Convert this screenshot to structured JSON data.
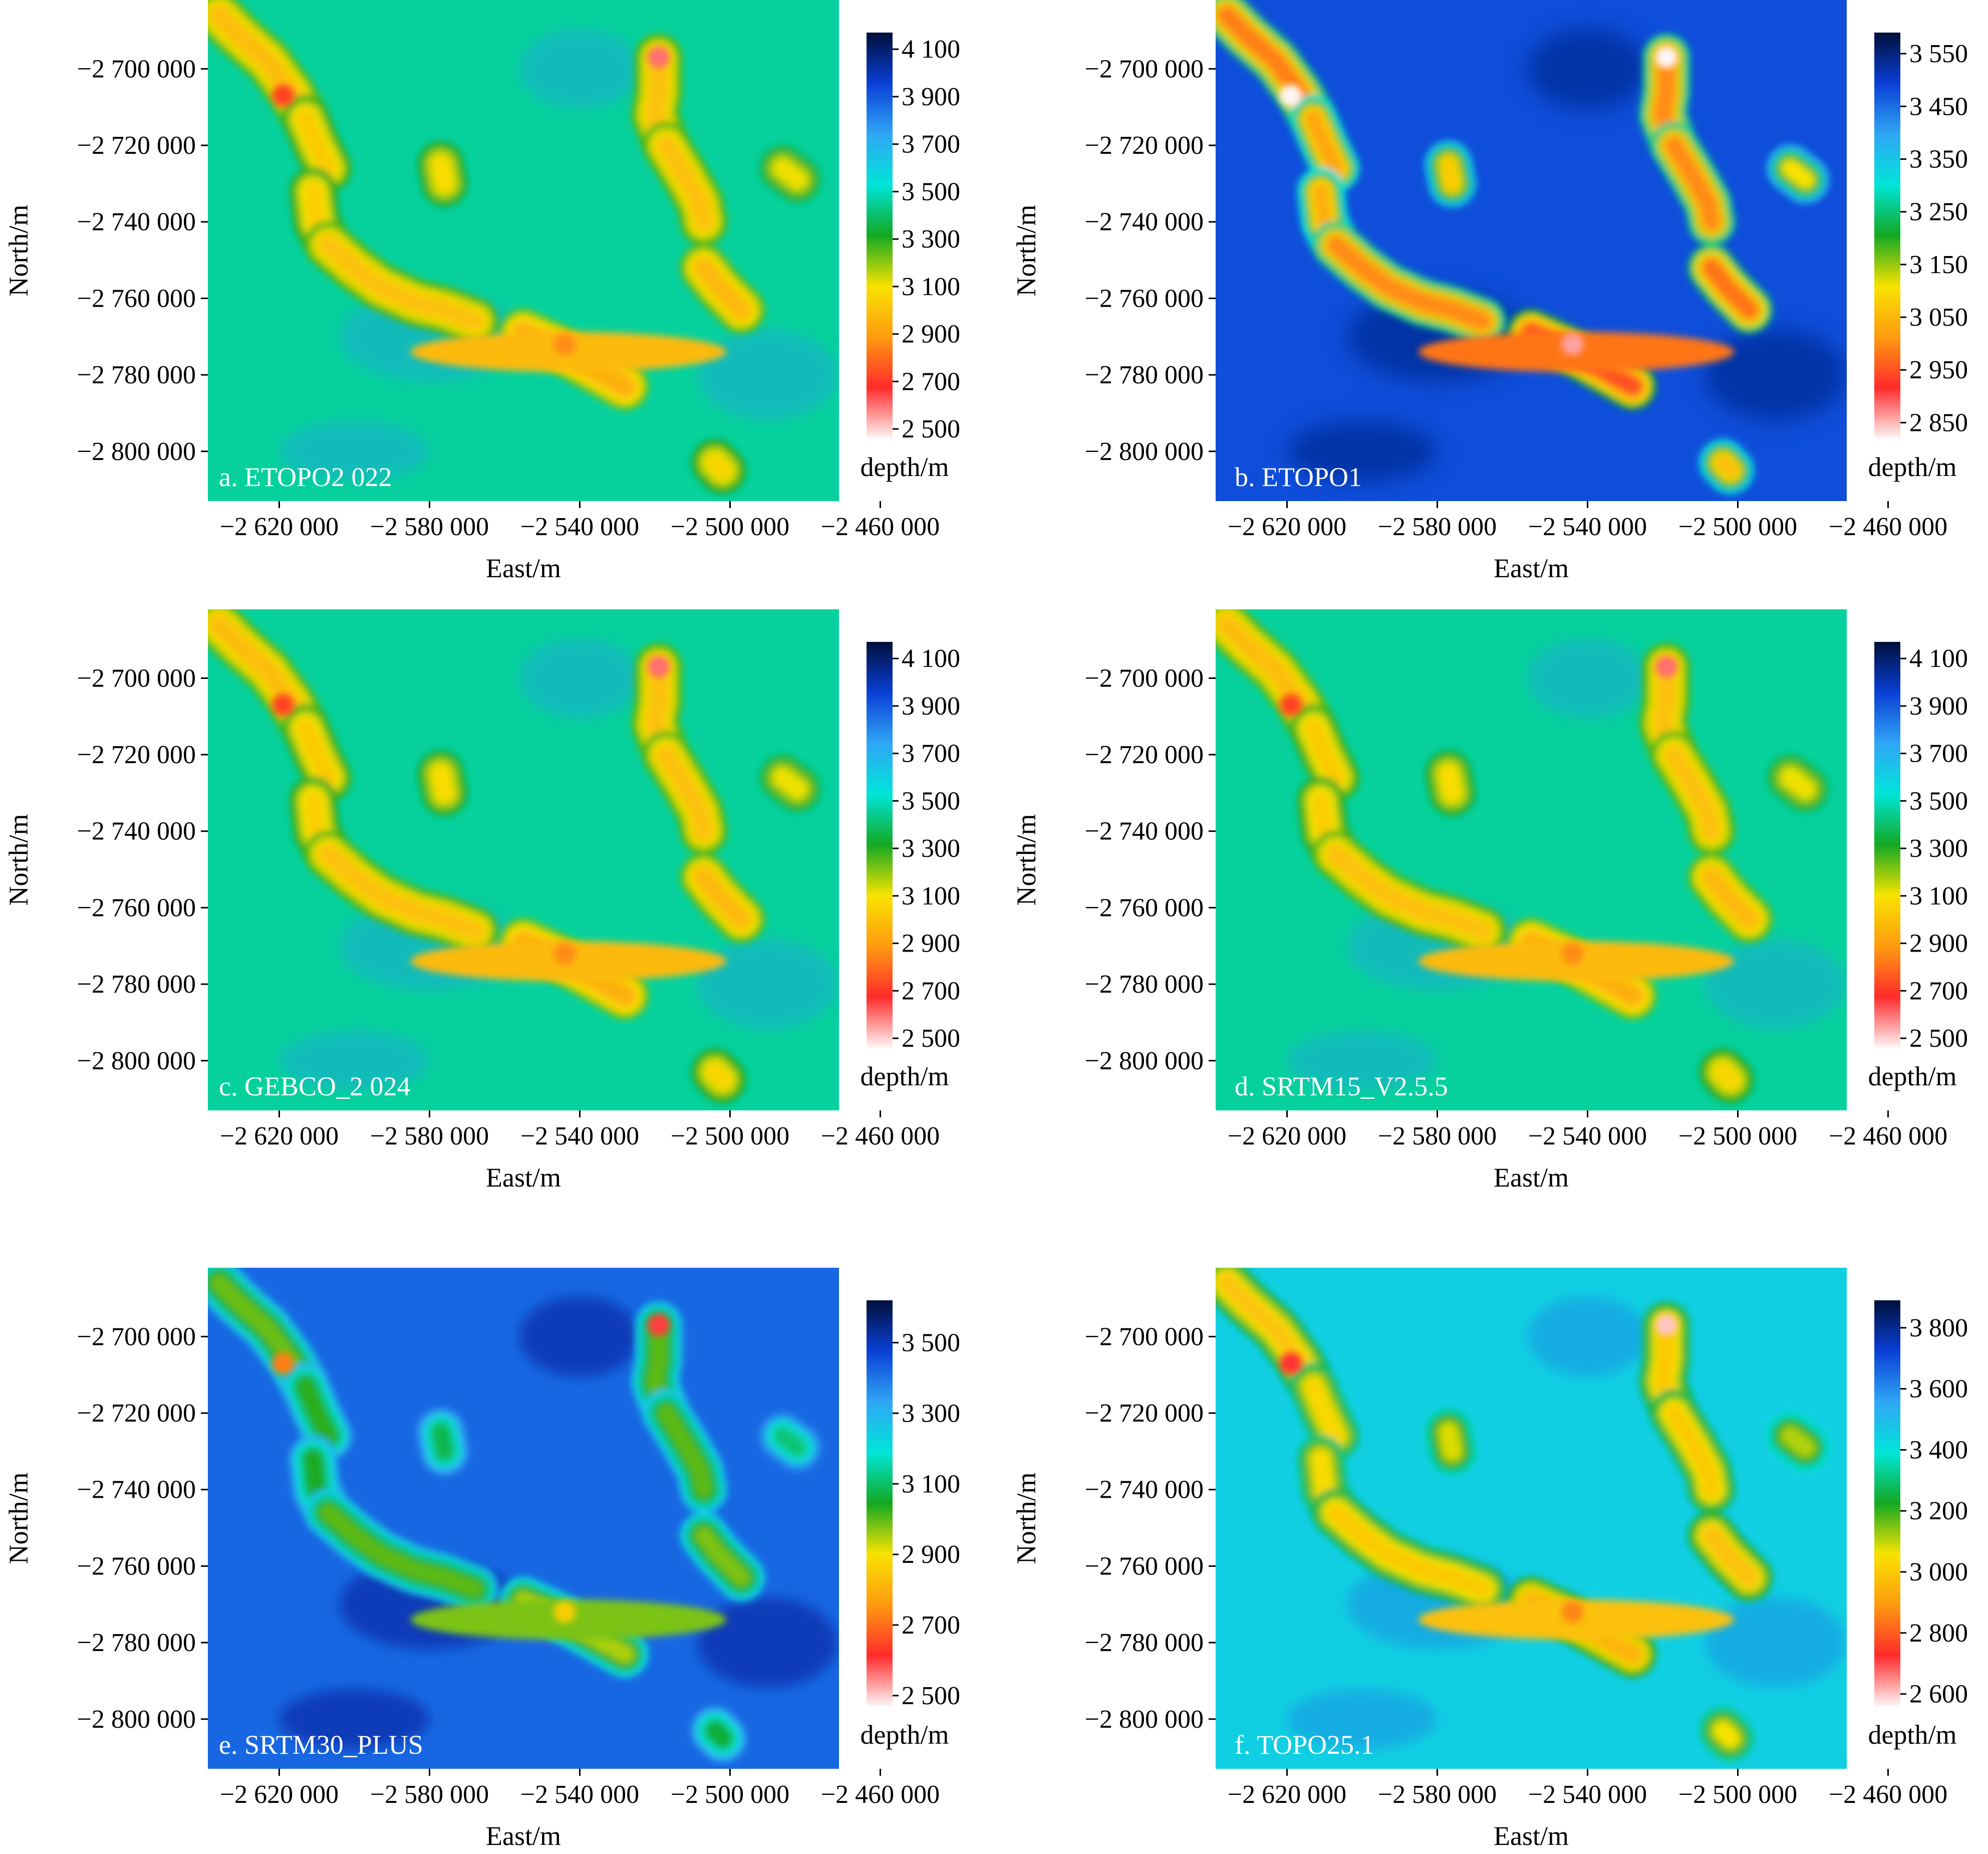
{
  "chart_data": [
    {
      "type": "heatmap",
      "panel_label": "a. ETOPO2 022",
      "xlabel": "East/m",
      "ylabel": "North/m",
      "xticks": [
        "−2 620 000",
        "−2 580 000",
        "−2 540 000",
        "−2 500 000",
        "−2 460 000"
      ],
      "xtick_values": [
        -2620000,
        -2580000,
        -2540000,
        -2500000,
        -2460000
      ],
      "yticks": [
        "−2 700 000",
        "−2 720 000",
        "−2 740 000",
        "−2 760 000",
        "−2 780 000",
        "−2 800 000"
      ],
      "ytick_values": [
        -2700000,
        -2720000,
        -2740000,
        -2760000,
        -2780000,
        -2800000
      ],
      "xlim": [
        -2639000,
        -2471000
      ],
      "ylim": [
        -2813000,
        -2682000
      ],
      "colorbar": {
        "title": "depth/m",
        "ticks": [
          "4 100",
          "3 900",
          "3 700",
          "3 500",
          "3 300",
          "3 100",
          "2 900",
          "2 700",
          "2 500"
        ],
        "tick_values": [
          4100,
          3900,
          3700,
          3500,
          3300,
          3100,
          2900,
          2700,
          2500
        ],
        "range": [
          2460,
          4170
        ],
        "colors": [
          "#fff6f6",
          "#ff2a2a",
          "#ff9b10",
          "#f8e300",
          "#13a822",
          "#00e5d8",
          "#2fa6f5",
          "#0a3fd6",
          "#000f3a"
        ]
      },
      "background_depth": 3460,
      "style": "etopo2"
    },
    {
      "type": "heatmap",
      "panel_label": "b. ETOPO1",
      "xlabel": "East/m",
      "ylabel": "North/m",
      "xticks": [
        "−2 620 000",
        "−2 580 000",
        "−2 540 000",
        "−2 500 000",
        "−2 460 000"
      ],
      "xtick_values": [
        -2620000,
        -2580000,
        -2540000,
        -2500000,
        -2460000
      ],
      "yticks": [
        "−2 700 000",
        "−2 720 000",
        "−2 740 000",
        "−2 760 000",
        "−2 780 000",
        "−2 800 000"
      ],
      "ytick_values": [
        -2700000,
        -2720000,
        -2740000,
        -2760000,
        -2780000,
        -2800000
      ],
      "xlim": [
        -2639000,
        -2471000
      ],
      "ylim": [
        -2813000,
        -2682000
      ],
      "colorbar": {
        "title": "depth/m",
        "ticks": [
          "3 550",
          "3 450",
          "3 350",
          "3 250",
          "3 150",
          "3 050",
          "2 950",
          "2 850"
        ],
        "tick_values": [
          3550,
          3450,
          3350,
          3250,
          3150,
          3050,
          2950,
          2850
        ],
        "range": [
          2820,
          3590
        ],
        "colors": [
          "#fff6f6",
          "#ff2a2a",
          "#ff9b10",
          "#f8e300",
          "#13a822",
          "#00e5d8",
          "#2fa6f5",
          "#0a3fd6",
          "#000f3a"
        ]
      },
      "background_depth": 3480,
      "style": "etopo1"
    },
    {
      "type": "heatmap",
      "panel_label": "c. GEBCO_2 024",
      "xlabel": "East/m",
      "ylabel": "North/m",
      "xticks": [
        "−2 620 000",
        "−2 580 000",
        "−2 540 000",
        "−2 500 000",
        "−2 460 000"
      ],
      "xtick_values": [
        -2620000,
        -2580000,
        -2540000,
        -2500000,
        -2460000
      ],
      "yticks": [
        "−2 700 000",
        "−2 720 000",
        "−2 740 000",
        "−2 760 000",
        "−2 780 000",
        "−2 800 000"
      ],
      "ytick_values": [
        -2700000,
        -2720000,
        -2740000,
        -2760000,
        -2780000,
        -2800000
      ],
      "xlim": [
        -2639000,
        -2471000
      ],
      "ylim": [
        -2813000,
        -2682000
      ],
      "colorbar": {
        "title": "depth/m",
        "ticks": [
          "4 100",
          "3 900",
          "3 700",
          "3 500",
          "3 300",
          "3 100",
          "2 900",
          "2 700",
          "2 500"
        ],
        "tick_values": [
          4100,
          3900,
          3700,
          3500,
          3300,
          3100,
          2900,
          2700,
          2500
        ],
        "range": [
          2460,
          4170
        ],
        "colors": [
          "#fff6f6",
          "#ff2a2a",
          "#ff9b10",
          "#f8e300",
          "#13a822",
          "#00e5d8",
          "#2fa6f5",
          "#0a3fd6",
          "#000f3a"
        ]
      },
      "background_depth": 3460,
      "style": "gebco"
    },
    {
      "type": "heatmap",
      "panel_label": "d. SRTM15_V2.5.5",
      "xlabel": "East/m",
      "ylabel": "North/m",
      "xticks": [
        "−2 620 000",
        "−2 580 000",
        "−2 540 000",
        "−2 500 000",
        "−2 460 000"
      ],
      "xtick_values": [
        -2620000,
        -2580000,
        -2540000,
        -2500000,
        -2460000
      ],
      "yticks": [
        "−2 700 000",
        "−2 720 000",
        "−2 740 000",
        "−2 760 000",
        "−2 780 000",
        "−2 800 000"
      ],
      "ytick_values": [
        -2700000,
        -2720000,
        -2740000,
        -2760000,
        -2780000,
        -2800000
      ],
      "xlim": [
        -2639000,
        -2471000
      ],
      "ylim": [
        -2813000,
        -2682000
      ],
      "colorbar": {
        "title": "depth/m",
        "ticks": [
          "4 100",
          "3 900",
          "3 700",
          "3 500",
          "3 300",
          "3 100",
          "2 900",
          "2 700",
          "2 500"
        ],
        "tick_values": [
          4100,
          3900,
          3700,
          3500,
          3300,
          3100,
          2900,
          2700,
          2500
        ],
        "range": [
          2460,
          4170
        ],
        "colors": [
          "#fff6f6",
          "#ff2a2a",
          "#ff9b10",
          "#f8e300",
          "#13a822",
          "#00e5d8",
          "#2fa6f5",
          "#0a3fd6",
          "#000f3a"
        ]
      },
      "background_depth": 3460,
      "style": "srtm15"
    },
    {
      "type": "heatmap",
      "panel_label": "e. SRTM30_PLUS",
      "xlabel": "East/m",
      "ylabel": "North/m",
      "xticks": [
        "−2 620 000",
        "−2 580 000",
        "−2 540 000",
        "−2 500 000",
        "−2 460 000"
      ],
      "xtick_values": [
        -2620000,
        -2580000,
        -2540000,
        -2500000,
        -2460000
      ],
      "yticks": [
        "−2 700 000",
        "−2 720 000",
        "−2 740 000",
        "−2 760 000",
        "−2 780 000",
        "−2 800 000"
      ],
      "ytick_values": [
        -2700000,
        -2720000,
        -2740000,
        -2760000,
        -2780000,
        -2800000
      ],
      "xlim": [
        -2639000,
        -2471000
      ],
      "ylim": [
        -2813000,
        -2682000
      ],
      "colorbar": {
        "title": "depth/m",
        "ticks": [
          "3 500",
          "3 300",
          "3 100",
          "2 900",
          "2 700",
          "2 500"
        ],
        "tick_values": [
          3500,
          3300,
          3100,
          2900,
          2700,
          2500
        ],
        "range": [
          2470,
          3620
        ],
        "colors": [
          "#fff6f6",
          "#ff2a2a",
          "#ff9b10",
          "#f8e300",
          "#13a822",
          "#00e5d8",
          "#2fa6f5",
          "#0a3fd6",
          "#000f3a"
        ]
      },
      "background_depth": 3420,
      "style": "srtm30"
    },
    {
      "type": "heatmap",
      "panel_label": "f. TOPO25.1",
      "xlabel": "East/m",
      "ylabel": "North/m",
      "xticks": [
        "−2 620 000",
        "−2 580 000",
        "−2 540 000",
        "−2 500 000",
        "−2 460 000"
      ],
      "xtick_values": [
        -2620000,
        -2580000,
        -2540000,
        -2500000,
        -2460000
      ],
      "yticks": [
        "−2 700 000",
        "−2 720 000",
        "−2 740 000",
        "−2 760 000",
        "−2 780 000",
        "−2 800 000"
      ],
      "ytick_values": [
        -2700000,
        -2720000,
        -2740000,
        -2760000,
        -2780000,
        -2800000
      ],
      "xlim": [
        -2639000,
        -2471000
      ],
      "ylim": [
        -2813000,
        -2682000
      ],
      "colorbar": {
        "title": "depth/m",
        "ticks": [
          "3 800",
          "3 600",
          "3 400",
          "3 200",
          "3 000",
          "2 800",
          "2 600"
        ],
        "tick_values": [
          3800,
          3600,
          3400,
          3200,
          3000,
          2800,
          2600
        ],
        "range": [
          2560,
          3890
        ],
        "colors": [
          "#fff6f6",
          "#ff2a2a",
          "#ff9b10",
          "#f8e300",
          "#13a822",
          "#00e5d8",
          "#2fa6f5",
          "#0a3fd6",
          "#000f3a"
        ]
      },
      "background_depth": 3450,
      "style": "topo25"
    }
  ],
  "features": [
    {
      "name": "western-ridge-north",
      "points": [
        [
          -2636000,
          -2686000
        ],
        [
          -2631000,
          -2691000
        ],
        [
          -2623000,
          -2698000
        ],
        [
          -2617000,
          -2706000
        ],
        [
          -2613000,
          -2713000
        ]
      ],
      "depth": 2990
    },
    {
      "name": "western-ridge-neck",
      "points": [
        [
          -2613000,
          -2713000
        ],
        [
          -2610000,
          -2720000
        ],
        [
          -2607000,
          -2726000
        ]
      ],
      "depth": 3030
    },
    {
      "name": "western-ridge-middle",
      "points": [
        [
          -2611000,
          -2732000
        ],
        [
          -2610000,
          -2740000
        ],
        [
          -2607000,
          -2746000
        ]
      ],
      "depth": 3040
    },
    {
      "name": "western-ridge-south",
      "points": [
        [
          -2607000,
          -2746000
        ],
        [
          -2600000,
          -2752000
        ],
        [
          -2593000,
          -2757000
        ],
        [
          -2584000,
          -2761000
        ],
        [
          -2576000,
          -2763000
        ],
        [
          -2568000,
          -2766000
        ]
      ],
      "depth": 3000
    },
    {
      "name": "seamount-small-center",
      "points": [
        [
          -2577000,
          -2725000
        ],
        [
          -2576000,
          -2730000
        ]
      ],
      "depth": 3080
    },
    {
      "name": "southern-plateau",
      "points": [
        [
          -2555000,
          -2769000
        ],
        [
          -2546000,
          -2773000
        ],
        [
          -2537000,
          -2778000
        ],
        [
          -2528000,
          -2783000
        ]
      ],
      "depth": 2950
    },
    {
      "name": "eastern-ridge-north",
      "points": [
        [
          -2519000,
          -2697000
        ],
        [
          -2519000,
          -2706000
        ],
        [
          -2520000,
          -2712000
        ],
        [
          -2517000,
          -2720000
        ]
      ],
      "depth": 3000
    },
    {
      "name": "eastern-ridge-south",
      "points": [
        [
          -2517000,
          -2720000
        ],
        [
          -2512000,
          -2728000
        ],
        [
          -2508000,
          -2735000
        ],
        [
          -2507000,
          -2740000
        ]
      ],
      "depth": 3000
    },
    {
      "name": "eastern-seamount-lower",
      "points": [
        [
          -2507000,
          -2752000
        ],
        [
          -2503000,
          -2757000
        ],
        [
          -2497000,
          -2763000
        ]
      ],
      "depth": 2980
    },
    {
      "name": "east-isolated-seamount",
      "points": [
        [
          -2486000,
          -2726000
        ],
        [
          -2482000,
          -2729000
        ]
      ],
      "depth": 3110
    },
    {
      "name": "southeast-small-seamount",
      "points": [
        [
          -2504000,
          -2803000
        ],
        [
          -2502000,
          -2805000
        ]
      ],
      "depth": 3060
    }
  ],
  "peaks": [
    {
      "name": "ne-summit",
      "x": -2519000,
      "y": -2697000,
      "depth": 2600
    },
    {
      "name": "nw-summit",
      "x": -2619000,
      "y": -2707000,
      "depth": 2720
    },
    {
      "name": "plateau-summit",
      "x": -2544000,
      "y": -2772000,
      "depth": 2860
    }
  ]
}
